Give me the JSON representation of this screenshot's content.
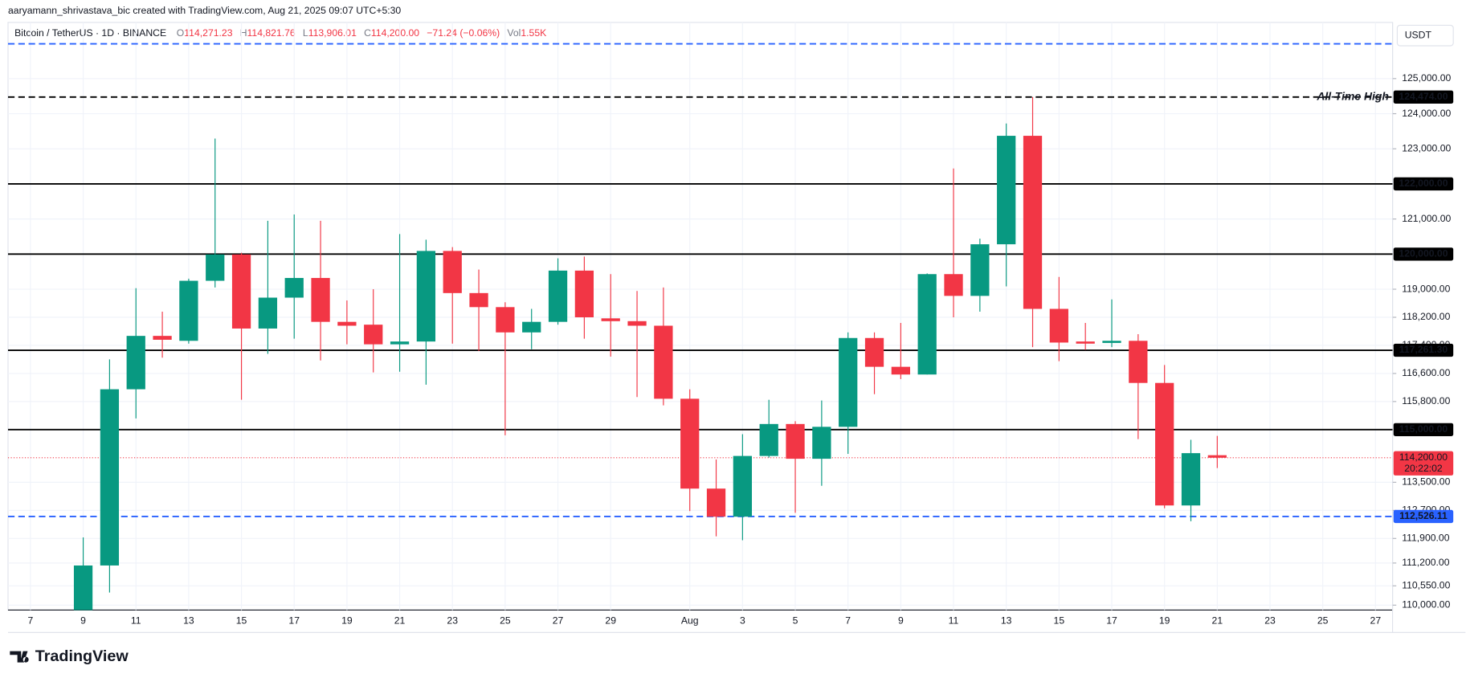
{
  "header": {
    "credit": "aaryamann_shrivastava_bic created with TradingView.com, Aug 21, 2025 09:07 UTC+5:30"
  },
  "legend": {
    "symbol": "Bitcoin / TetherUS · 1D · BINANCE",
    "ohlc": [
      {
        "key": "O",
        "value": "114,271.23"
      },
      {
        "key": "H",
        "value": "114,821.76"
      },
      {
        "key": "L",
        "value": "113,906.01"
      },
      {
        "key": "C",
        "value": "114,200.00"
      }
    ],
    "change": "−71.24 (−0.06%)",
    "volume_key": "Vol",
    "volume": "1.55K"
  },
  "currency": "USDT",
  "logo": "TradingView",
  "chart_data": {
    "type": "candlestick",
    "up_color": "#089981",
    "down_color": "#f23645",
    "categories": [
      "7",
      null,
      "9",
      null,
      "11",
      null,
      "13",
      null,
      "15",
      null,
      "17",
      null,
      "19",
      null,
      "21",
      null,
      "23",
      null,
      "25",
      null,
      "27",
      null,
      "29",
      null,
      null,
      "Aug",
      null,
      "3",
      null,
      "5",
      null,
      "7",
      null,
      "9",
      null,
      "11",
      null,
      "13",
      null,
      "15",
      null,
      "17",
      null,
      "19",
      null,
      "21",
      null,
      "23",
      null,
      "25",
      null,
      "27"
    ],
    "open": [
      null,
      null,
      109640,
      111130,
      116150,
      117670,
      117530,
      119240,
      119990,
      117880,
      118760,
      119320,
      118070,
      117990,
      117430,
      117510,
      120090,
      118890,
      118490,
      117770,
      118070,
      119530,
      118170,
      118090,
      117960,
      115880,
      113320,
      112520,
      114250,
      115160,
      114170,
      115080,
      117610,
      116790,
      116570,
      119430,
      118810,
      120280,
      123370,
      118440,
      117510,
      117470,
      117530,
      116330,
      112840,
      114271.23,
      null,
      null,
      null,
      null,
      null,
      null
    ],
    "high": [
      null,
      null,
      111930,
      117000,
      119030,
      118360,
      119300,
      123290,
      120040,
      120950,
      121130,
      120950,
      118680,
      119000,
      120570,
      120410,
      120200,
      119560,
      118630,
      118440,
      119880,
      119930,
      119430,
      118950,
      119050,
      116150,
      114150,
      114870,
      115850,
      115240,
      115830,
      117770,
      117770,
      118040,
      119450,
      122440,
      120440,
      123720,
      124474,
      119350,
      118040,
      118710,
      117720,
      116840,
      114710,
      114821.76,
      null,
      null,
      null,
      null,
      null,
      null
    ],
    "low": [
      null,
      null,
      109500,
      110360,
      115320,
      117050,
      117450,
      119050,
      115850,
      117160,
      117590,
      116970,
      117430,
      116630,
      116650,
      116280,
      117450,
      117240,
      114840,
      117290,
      117990,
      117590,
      117080,
      115930,
      115690,
      112680,
      111960,
      111850,
      114200,
      112630,
      113400,
      114310,
      116010,
      116440,
      116570,
      118200,
      118360,
      119080,
      117350,
      116950,
      117270,
      117350,
      114730,
      112760,
      112390,
      113906.01,
      null,
      null,
      null,
      null,
      null,
      null
    ],
    "close": [
      null,
      null,
      111130,
      116150,
      117670,
      117560,
      119240,
      119990,
      117880,
      118760,
      119320,
      118070,
      117960,
      117430,
      117510,
      120090,
      118890,
      118490,
      117770,
      118070,
      119530,
      118200,
      118090,
      117960,
      115880,
      113320,
      112520,
      114250,
      115160,
      114170,
      115080,
      117610,
      116790,
      116570,
      119430,
      118810,
      120280,
      123370,
      118440,
      117480,
      117450,
      117530,
      116330,
      112840,
      114330,
      114200,
      null,
      null,
      null,
      null,
      null,
      null
    ],
    "ylim": [
      109860,
      126600
    ],
    "yticks": [
      {
        "value": 125000,
        "label": "125,000.00"
      },
      {
        "value": 124000,
        "label": "124,000.00"
      },
      {
        "value": 123000,
        "label": "123,000.00"
      },
      {
        "value": 121000,
        "label": "121,000.00"
      },
      {
        "value": 119000,
        "label": "119,000.00"
      },
      {
        "value": 118200,
        "label": "118,200.00"
      },
      {
        "value": 117400,
        "label": "117,400.00"
      },
      {
        "value": 116600,
        "label": "116,600.00"
      },
      {
        "value": 115800,
        "label": "115,800.00"
      },
      {
        "value": 113500,
        "label": "113,500.00"
      },
      {
        "value": 112700,
        "label": "112,700.00"
      },
      {
        "value": 111900,
        "label": "111,900.00"
      },
      {
        "value": 111200,
        "label": "111,200.00"
      },
      {
        "value": 110550,
        "label": "110,550.00"
      },
      {
        "value": 110000,
        "label": "110,000.00"
      }
    ],
    "grid": true,
    "levels": [
      {
        "value": 125990,
        "style": "dashed",
        "color": "#2962ff"
      },
      {
        "value": 124474,
        "label": "124,474.00",
        "style": "dashed",
        "color": "#000000",
        "annotation": "All-Time High"
      },
      {
        "value": 122000,
        "label": "122,000.00",
        "style": "solid",
        "color": "#000000"
      },
      {
        "value": 120000,
        "label": "120,000.00",
        "style": "solid",
        "color": "#000000"
      },
      {
        "value": 117261.3,
        "label": "117,261.30",
        "style": "solid",
        "color": "#000000"
      },
      {
        "value": 115000,
        "label": "115,000.00",
        "style": "solid",
        "color": "#000000"
      },
      {
        "value": 112526.11,
        "label": "112,526.11",
        "style": "dashed",
        "color": "#2962ff"
      }
    ],
    "current_price": {
      "value": 114200,
      "label": "114,200.00",
      "countdown": "20:22:02",
      "color": "#f23645"
    }
  }
}
